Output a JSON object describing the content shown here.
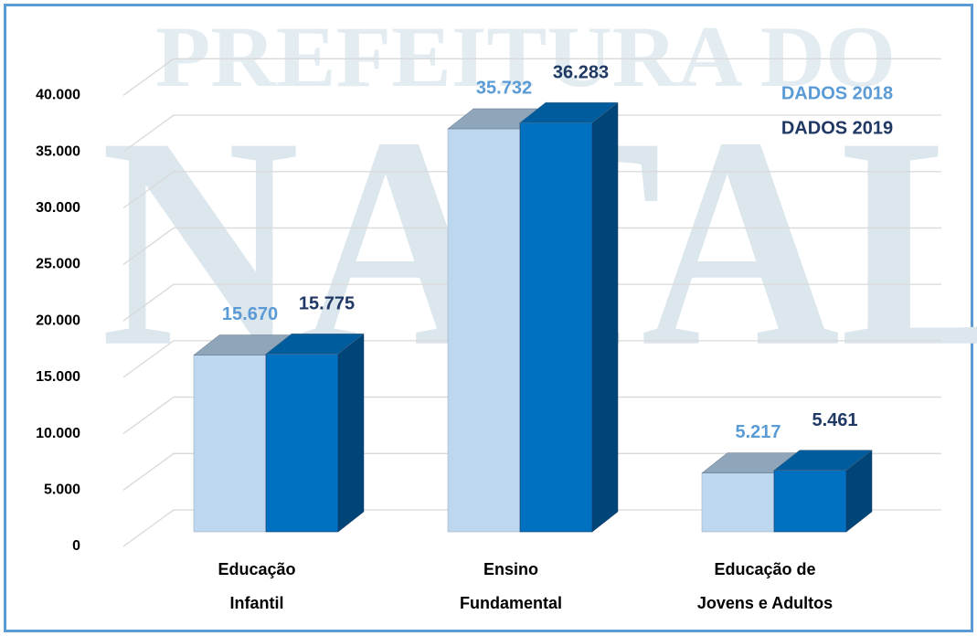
{
  "chart_data": {
    "type": "bar3d",
    "watermark": [
      "PREFEITURA DO",
      "NATAL"
    ],
    "categories": [
      "Educação\nInfantil",
      "Ensino\nFundamental",
      "Educação de\nJovens e Adultos"
    ],
    "series": [
      {
        "name": "DADOS 2018",
        "color": "#bdd7ee",
        "label_color": "#5b9bd5",
        "values": [
          15670,
          35732,
          5217
        ],
        "value_labels": [
          "15.670",
          "35.732",
          "5.217"
        ]
      },
      {
        "name": "DADOS 2019",
        "color": "#0070c0",
        "label_color": "#1f3864",
        "values": [
          15775,
          36283,
          5461
        ],
        "value_labels": [
          "15.775",
          "36.283",
          "5.461"
        ]
      }
    ],
    "ylim": [
      0,
      40000
    ],
    "yticks": [
      0,
      {
        "value": 5000,
        "label": "5.000"
      },
      {
        "value": 10000,
        "label": "10.000"
      },
      {
        "value": 15000,
        "label": "15.000"
      },
      {
        "value": 20000,
        "label": "20.000"
      },
      {
        "value": 25000,
        "label": "25.000"
      },
      {
        "value": 30000,
        "label": "30.000"
      },
      {
        "value": 35000,
        "label": "35.000"
      },
      {
        "value": 40000,
        "label": "40.000"
      }
    ],
    "grid": true,
    "legend": "upper right"
  }
}
